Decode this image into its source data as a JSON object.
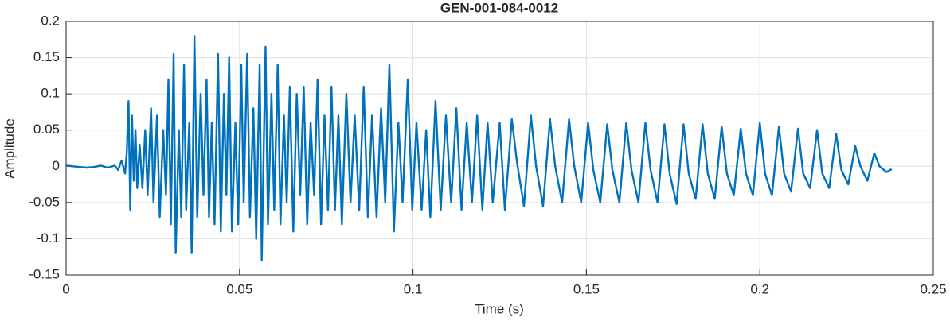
{
  "chart_data": {
    "type": "line",
    "title": "GEN-001-084-0012",
    "x_label": "Time (s)",
    "y_label": "Amplitude",
    "xlim": [
      0,
      0.25
    ],
    "xticks": [
      0,
      0.05,
      0.1,
      0.15,
      0.2,
      0.25
    ],
    "ylim": [
      -0.15,
      0.2
    ],
    "yticks": [
      -0.15,
      -0.1,
      -0.05,
      0,
      0.05,
      0.1,
      0.15,
      0.2
    ],
    "grid": true,
    "series": [
      {
        "color": "#0072BD",
        "x": [
          0,
          0.002,
          0.004,
          0.006,
          0.008,
          0.01,
          0.012,
          0.014,
          0.015,
          0.016,
          0.017,
          0.0175,
          0.018,
          0.0185,
          0.019,
          0.0195,
          0.02,
          0.0205,
          0.0212,
          0.022,
          0.0228,
          0.0235,
          0.0245,
          0.0252,
          0.0262,
          0.027,
          0.028,
          0.0288,
          0.0295,
          0.0302,
          0.031,
          0.0316,
          0.0325,
          0.0332,
          0.034,
          0.0346,
          0.0355,
          0.0362,
          0.037,
          0.0378,
          0.0388,
          0.0396,
          0.0405,
          0.0412,
          0.042,
          0.0428,
          0.0438,
          0.0446,
          0.0455,
          0.0462,
          0.047,
          0.0478,
          0.0488,
          0.0496,
          0.0505,
          0.0512,
          0.0522,
          0.053,
          0.054,
          0.0548,
          0.0558,
          0.0564,
          0.0575,
          0.0582,
          0.0592,
          0.06,
          0.061,
          0.0618,
          0.0628,
          0.0636,
          0.0645,
          0.0655,
          0.0665,
          0.0675,
          0.0685,
          0.0695,
          0.0705,
          0.0715,
          0.0725,
          0.0735,
          0.0745,
          0.0755,
          0.0765,
          0.0775,
          0.0785,
          0.0795,
          0.0808,
          0.082,
          0.0832,
          0.0845,
          0.0858,
          0.087,
          0.0882,
          0.0895,
          0.0908,
          0.092,
          0.0932,
          0.0945,
          0.0958,
          0.097,
          0.0985,
          0.0998,
          0.101,
          0.1025,
          0.1038,
          0.105,
          0.1065,
          0.108,
          0.1095,
          0.111,
          0.1125,
          0.114,
          0.1155,
          0.117,
          0.1185,
          0.12,
          0.1215,
          0.123,
          0.125,
          0.1265,
          0.1285,
          0.13,
          0.132,
          0.134,
          0.1355,
          0.1375,
          0.1395,
          0.141,
          0.143,
          0.145,
          0.1465,
          0.1485,
          0.1505,
          0.152,
          0.154,
          0.156,
          0.1575,
          0.1595,
          0.1615,
          0.163,
          0.165,
          0.167,
          0.1685,
          0.1705,
          0.1725,
          0.174,
          0.176,
          0.178,
          0.1795,
          0.1815,
          0.1835,
          0.185,
          0.187,
          0.189,
          0.1905,
          0.1925,
          0.1945,
          0.196,
          0.198,
          0.2,
          0.2015,
          0.2035,
          0.2055,
          0.207,
          0.209,
          0.211,
          0.2125,
          0.2145,
          0.2165,
          0.218,
          0.22,
          0.222,
          0.2235,
          0.2255,
          0.2275,
          0.229,
          0.231,
          0.233,
          0.2345,
          0.2365,
          0.238
        ],
        "values": [
          0.001,
          0,
          -0.001,
          -0.002,
          -0.001,
          0.001,
          -0.002,
          0.001,
          -0.005,
          0.008,
          -0.01,
          0.02,
          0.09,
          -0.06,
          0.07,
          -0.02,
          0.05,
          -0.03,
          0.03,
          -0.03,
          0.05,
          -0.04,
          0.08,
          -0.05,
          0.07,
          -0.07,
          0.05,
          -0.04,
          0.12,
          -0.08,
          0.155,
          -0.12,
          0.05,
          -0.07,
          0.14,
          -0.06,
          0.06,
          -0.12,
          0.18,
          -0.07,
          0.1,
          -0.04,
          0.12,
          -0.07,
          0.06,
          -0.08,
          0.155,
          -0.09,
          0.1,
          -0.04,
          0.15,
          -0.09,
          0.06,
          -0.08,
          0.14,
          -0.05,
          0.155,
          -0.07,
          0.08,
          -0.1,
          0.14,
          -0.13,
          0.165,
          -0.08,
          0.1,
          -0.06,
          0.14,
          -0.08,
          0.07,
          -0.05,
          0.11,
          -0.09,
          0.1,
          -0.04,
          0.11,
          -0.08,
          0.06,
          -0.04,
          0.12,
          -0.08,
          0.07,
          -0.06,
          0.11,
          -0.06,
          0.07,
          -0.08,
          0.1,
          -0.05,
          0.07,
          -0.06,
          0.11,
          -0.07,
          0.07,
          -0.07,
          0.08,
          -0.05,
          0.14,
          -0.09,
          0.06,
          -0.05,
          0.12,
          -0.06,
          0.06,
          -0.06,
          0.05,
          -0.07,
          0.09,
          -0.06,
          0.07,
          -0.05,
          0.08,
          -0.06,
          0.06,
          -0.05,
          0.07,
          -0.06,
          0.06,
          -0.05,
          0.06,
          -0.06,
          0.065,
          0.005,
          -0.055,
          0.07,
          0,
          -0.055,
          0.065,
          0,
          -0.05,
          0.065,
          0,
          -0.05,
          0.06,
          -0.005,
          -0.05,
          0.058,
          -0.005,
          -0.05,
          0.06,
          -0.005,
          -0.05,
          0.06,
          -0.005,
          -0.05,
          0.058,
          -0.01,
          -0.052,
          0.058,
          -0.01,
          -0.045,
          0.058,
          -0.01,
          -0.045,
          0.055,
          -0.01,
          -0.04,
          0.052,
          -0.01,
          -0.04,
          0.06,
          -0.01,
          -0.04,
          0.055,
          -0.01,
          -0.035,
          0.052,
          -0.01,
          -0.03,
          0.05,
          -0.01,
          -0.03,
          0.045,
          -0.005,
          -0.025,
          0.028,
          0,
          -0.02,
          0.018,
          0,
          -0.008,
          -0.004
        ]
      }
    ]
  }
}
